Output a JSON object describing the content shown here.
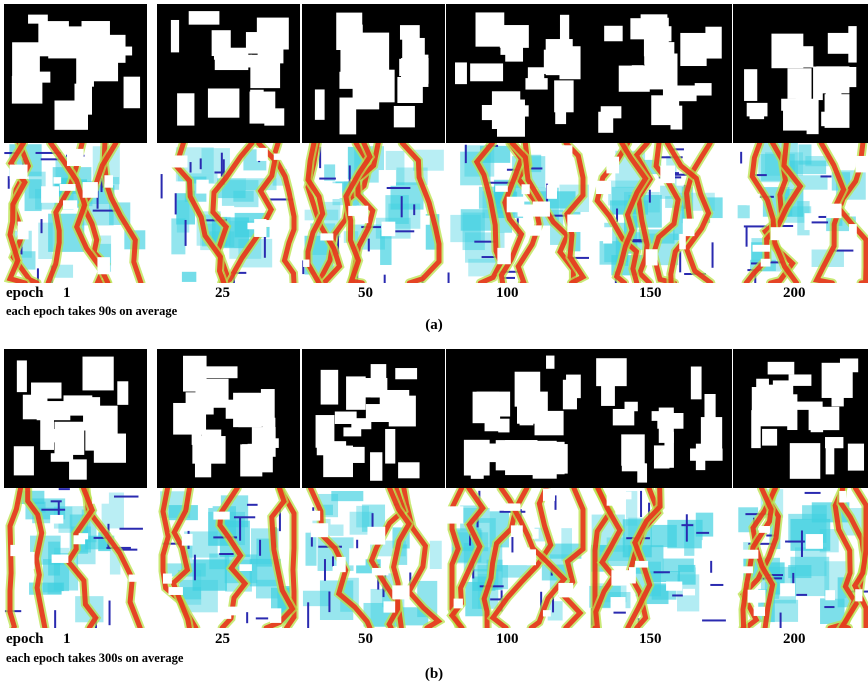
{
  "panel_a": {
    "epoch_label": "epoch",
    "epochs": [
      "1",
      "25",
      "50",
      "100",
      "150",
      "200"
    ],
    "note": "each epoch takes 90s on average",
    "caption": "(a)"
  },
  "panel_b": {
    "epoch_label": "epoch",
    "epochs": [
      "1",
      "25",
      "50",
      "100",
      "150",
      "200"
    ],
    "note": "each epoch takes 300s on average",
    "caption": "(b)"
  },
  "colors": {
    "solid": "#000000",
    "void": "#ffffff",
    "flow_low": "#3fd0e0",
    "flow_mid": "#b8e24a",
    "flow_high": "#e8321c",
    "edge": "#2a2ab0"
  }
}
